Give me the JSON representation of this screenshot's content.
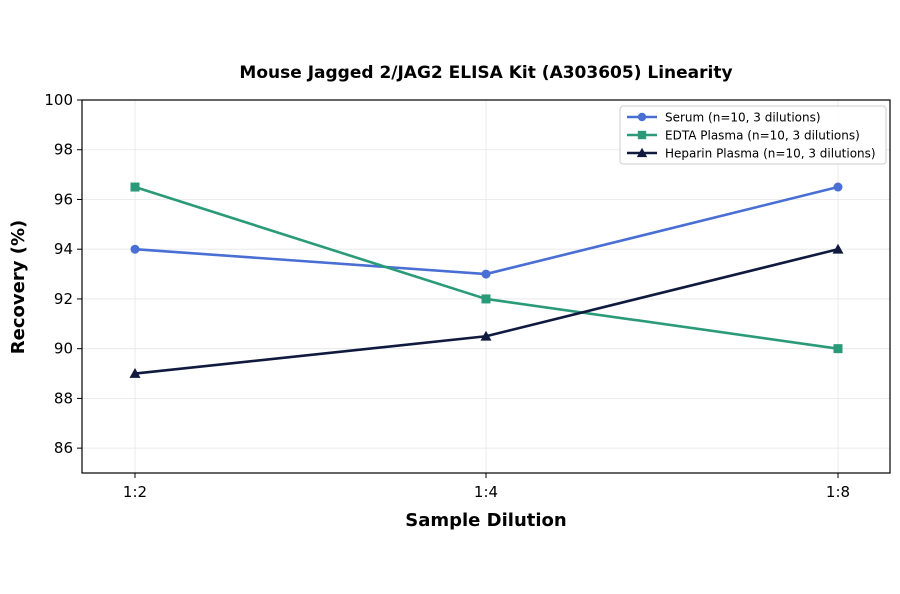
{
  "chart_data": {
    "type": "line",
    "title": "Mouse Jagged 2/JAG2 ELISA Kit (A303605) Linearity",
    "xlabel": "Sample Dilution",
    "ylabel": "Recovery (%)",
    "categories": [
      "1:2",
      "1:4",
      "1:8"
    ],
    "ylim": [
      85,
      100
    ],
    "yticks": [
      86,
      88,
      90,
      92,
      94,
      96,
      98,
      100
    ],
    "grid": true,
    "legend_position": "top-right",
    "series": [
      {
        "name": "Serum (n=10, 3 dilutions)",
        "values": [
          94,
          93,
          96.5
        ],
        "color": "#4a6fd4",
        "marker": "circle"
      },
      {
        "name": "EDTA Plasma (n=10, 3 dilutions)",
        "values": [
          96.5,
          92,
          90
        ],
        "color": "#2a9a78",
        "marker": "square"
      },
      {
        "name": "Heparin Plasma (n=10, 3 dilutions)",
        "values": [
          89,
          90.5,
          94
        ],
        "color": "#101a3e",
        "marker": "triangle"
      }
    ]
  }
}
